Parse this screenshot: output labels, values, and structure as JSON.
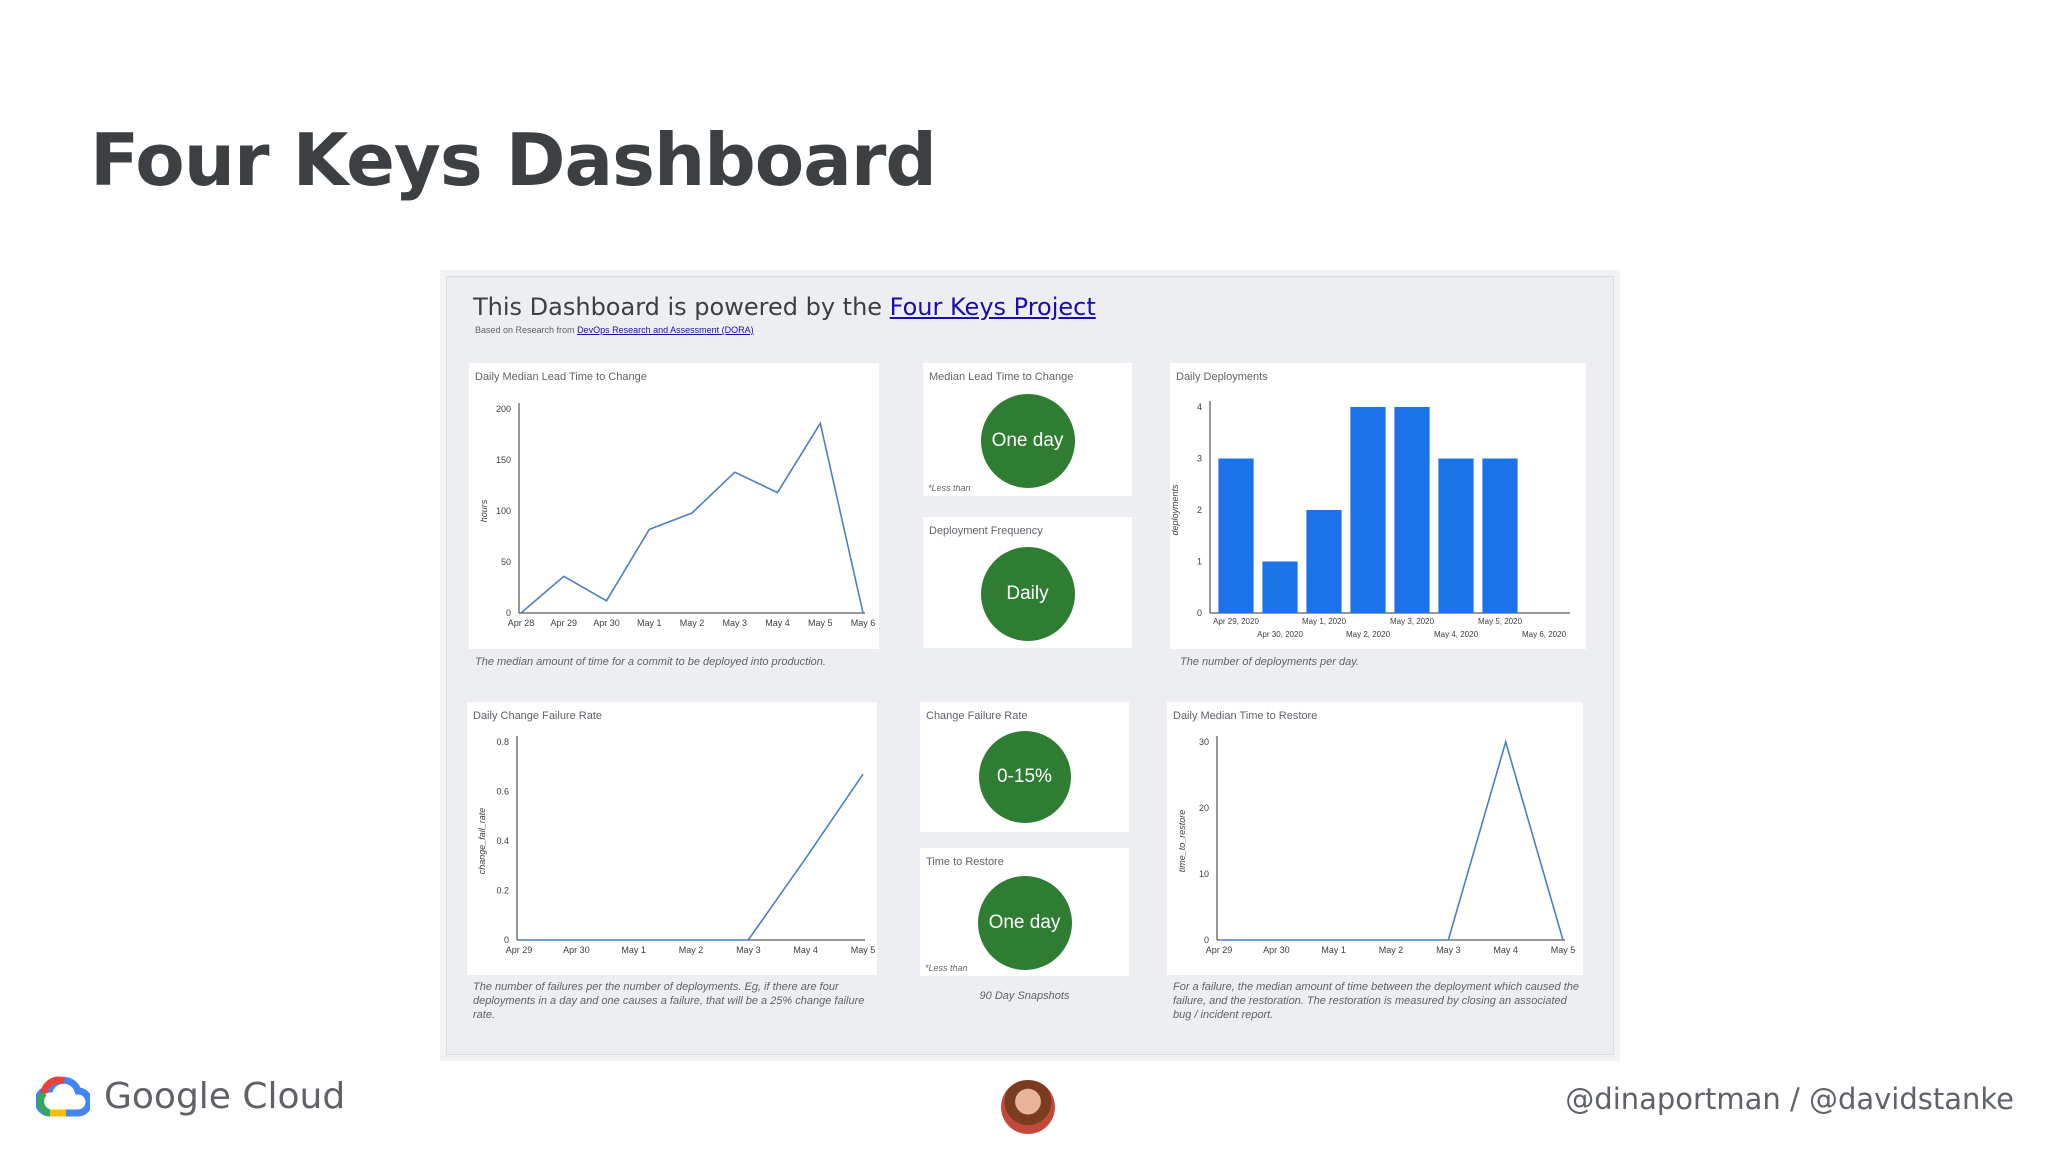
{
  "slide": {
    "title": "Four Keys Dashboard",
    "handles": "@dinaportman / @davidstanke",
    "brand": "Google Cloud"
  },
  "dashboard": {
    "header_prefix": "This Dashboard is powered by the ",
    "header_link": "Four Keys Project",
    "sub_prefix": "Based on Research from ",
    "sub_link": "DevOps Research and Assessment (DORA)",
    "snapshots_note": "90 Day Snapshots"
  },
  "cards": {
    "lead_time_chart": {
      "title": "Daily Median Lead Time to Change",
      "description": "The median amount of time for a commit to be deployed into production."
    },
    "median_lead_time": {
      "title": "Median Lead Time to Change",
      "value": "One day",
      "note": "*Less than"
    },
    "deploy_frequency": {
      "title": "Deployment Frequency",
      "value": "Daily"
    },
    "daily_deployments": {
      "title": "Daily Deployments",
      "description": "The number of deployments per day."
    },
    "cfr_chart": {
      "title": "Daily Change Failure Rate",
      "description": "The number of failures per the number of deployments. Eg, if there are four deployments in a day and one causes a failure, that will be a 25% change failure rate."
    },
    "change_failure_rate": {
      "title": "Change Failure Rate",
      "value": "0-15%"
    },
    "time_to_restore": {
      "title": "Time to Restore",
      "value": "One day",
      "note": "*Less than"
    },
    "restore_chart": {
      "title": "Daily Median Time to Restore",
      "description": "For a failure, the median amount of time between the deployment which caused the failure, and the restoration. The restoration is measured by closing an associated bug / incident report."
    }
  },
  "chart_data": [
    {
      "type": "line",
      "title": "Daily Median Lead Time to Change",
      "ylabel": "hours",
      "x": [
        "Apr 28",
        "Apr 29",
        "Apr 30",
        "May 1",
        "May 2",
        "May 3",
        "May 4",
        "May 5",
        "May 6"
      ],
      "values": [
        0,
        36,
        12,
        82,
        98,
        138,
        118,
        186,
        0
      ],
      "ylim": [
        0,
        200
      ],
      "yticks": [
        0,
        50,
        100,
        150,
        200
      ],
      "color": "#4a7fc1"
    },
    {
      "type": "bar",
      "title": "Daily Deployments",
      "ylabel": "deployments",
      "categories": [
        "Apr 29, 2020",
        "Apr 30, 2020",
        "May 1, 2020",
        "May 2, 2020",
        "May 3, 2020",
        "May 4, 2020",
        "May 5, 2020",
        "May 6, 2020"
      ],
      "values": [
        3,
        1,
        2,
        4,
        4,
        3,
        3,
        0
      ],
      "ylim": [
        0,
        4
      ],
      "yticks": [
        0,
        1,
        2,
        3,
        4
      ],
      "color": "#1a73e8"
    },
    {
      "type": "line",
      "title": "Daily Change Failure Rate",
      "ylabel": "change_fail_rate",
      "x": [
        "Apr 29",
        "Apr 30",
        "May 1",
        "May 2",
        "May 3",
        "May 4",
        "May 5"
      ],
      "values": [
        0,
        0,
        0,
        0,
        0,
        0.33,
        0.67
      ],
      "ylim": [
        0,
        0.8
      ],
      "yticks": [
        "0",
        "0.2",
        "0.4",
        "0.6",
        "0.8"
      ],
      "color": "#4a7fc1"
    },
    {
      "type": "line",
      "title": "Daily Median Time to Restore",
      "ylabel": "time_to_restore",
      "x": [
        "Apr 29",
        "Apr 30",
        "May 1",
        "May 2",
        "May 3",
        "May 4",
        "May 5"
      ],
      "values": [
        0,
        0,
        0,
        0,
        0,
        30,
        0
      ],
      "ylim": [
        0,
        30
      ],
      "yticks": [
        0,
        10,
        20,
        30
      ],
      "color": "#4a7fc1"
    }
  ]
}
